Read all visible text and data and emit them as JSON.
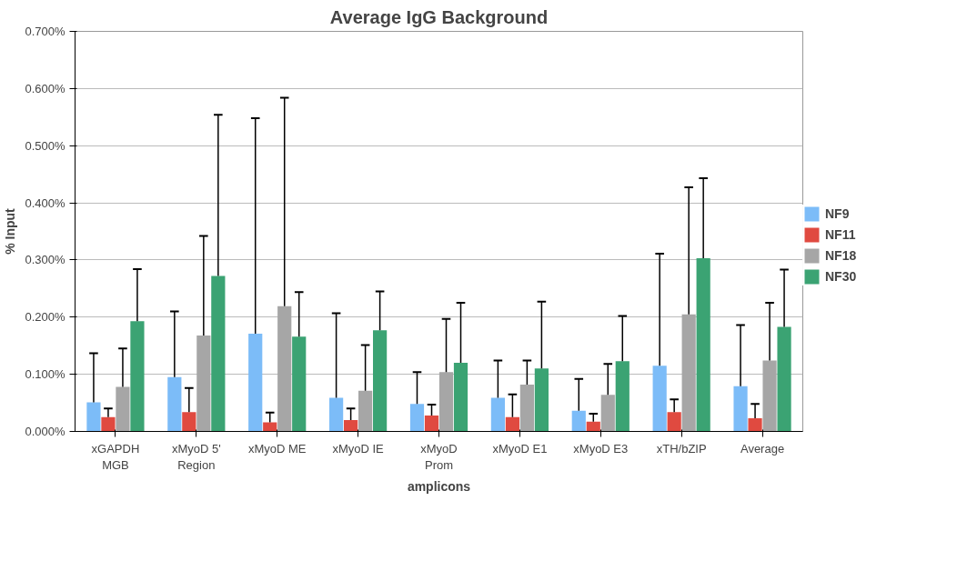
{
  "chart_data": {
    "type": "bar",
    "title": "Average IgG Background",
    "xlabel": "amplicons",
    "ylabel": "% Input",
    "categories": [
      "xGAPDH\nMGB",
      "xMyoD 5'\nRegion",
      "xMyoD ME",
      "xMyoD IE",
      "xMyoD\nProm",
      "xMyoD E1",
      "xMyoD E3",
      "xTH/bZIP",
      "Average"
    ],
    "series": [
      {
        "name": "NF9",
        "color": "#7cbcf8",
        "values": [
          0.051,
          0.095,
          0.171,
          0.059,
          0.048,
          0.059,
          0.036,
          0.115,
          0.079
        ],
        "errors": [
          [
            0.051,
            0.137
          ],
          [
            0.095,
            0.21
          ],
          [
            0.171,
            0.548
          ],
          [
            0.059,
            0.207
          ],
          [
            0.048,
            0.104
          ],
          [
            0.059,
            0.124
          ],
          [
            0.036,
            0.092
          ],
          [
            0.115,
            0.311
          ],
          [
            0.079,
            0.186
          ]
        ]
      },
      {
        "name": "NF11",
        "color": "#e04a40",
        "values": [
          0.025,
          0.034,
          0.016,
          0.02,
          0.028,
          0.025,
          0.017,
          0.034,
          0.023
        ],
        "errors": [
          [
            0.025,
            0.04
          ],
          [
            0.034,
            0.076
          ],
          [
            0.016,
            0.033
          ],
          [
            0.02,
            0.04
          ],
          [
            0.028,
            0.047
          ],
          [
            0.025,
            0.065
          ],
          [
            0.017,
            0.031
          ],
          [
            0.034,
            0.056
          ],
          [
            0.023,
            0.048
          ]
        ]
      },
      {
        "name": "NF18",
        "color": "#a6a6a6",
        "values": [
          0.078,
          0.168,
          0.219,
          0.071,
          0.104,
          0.082,
          0.064,
          0.205,
          0.124
        ],
        "errors": [
          [
            0.078,
            0.145
          ],
          [
            0.168,
            0.342
          ],
          [
            0.219,
            0.584
          ],
          [
            0.071,
            0.151
          ],
          [
            0.104,
            0.197
          ],
          [
            0.082,
            0.124
          ],
          [
            0.064,
            0.118
          ],
          [
            0.205,
            0.427
          ],
          [
            0.124,
            0.225
          ]
        ]
      },
      {
        "name": "NF30",
        "color": "#3ba373",
        "values": [
          0.193,
          0.272,
          0.166,
          0.177,
          0.12,
          0.11,
          0.123,
          0.303,
          0.183
        ],
        "errors": [
          [
            0.193,
            0.284
          ],
          [
            0.272,
            0.554
          ],
          [
            0.166,
            0.244
          ],
          [
            0.177,
            0.245
          ],
          [
            0.12,
            0.225
          ],
          [
            0.11,
            0.227
          ],
          [
            0.123,
            0.202
          ],
          [
            0.303,
            0.443
          ],
          [
            0.183,
            0.283
          ]
        ]
      }
    ],
    "ylim": [
      0,
      0.7
    ],
    "yticks": [
      {
        "value": 0,
        "label": "0.000%"
      },
      {
        "value": 0.1,
        "label": "0.100%"
      },
      {
        "value": 0.2,
        "label": "0.200%"
      },
      {
        "value": 0.3,
        "label": "0.300%"
      },
      {
        "value": 0.4,
        "label": "0.400%"
      },
      {
        "value": 0.5,
        "label": "0.500%"
      },
      {
        "value": 0.6,
        "label": "0.600%"
      },
      {
        "value": 0.7,
        "label": "0.700%"
      }
    ],
    "grid": "y",
    "legend": "right"
  }
}
